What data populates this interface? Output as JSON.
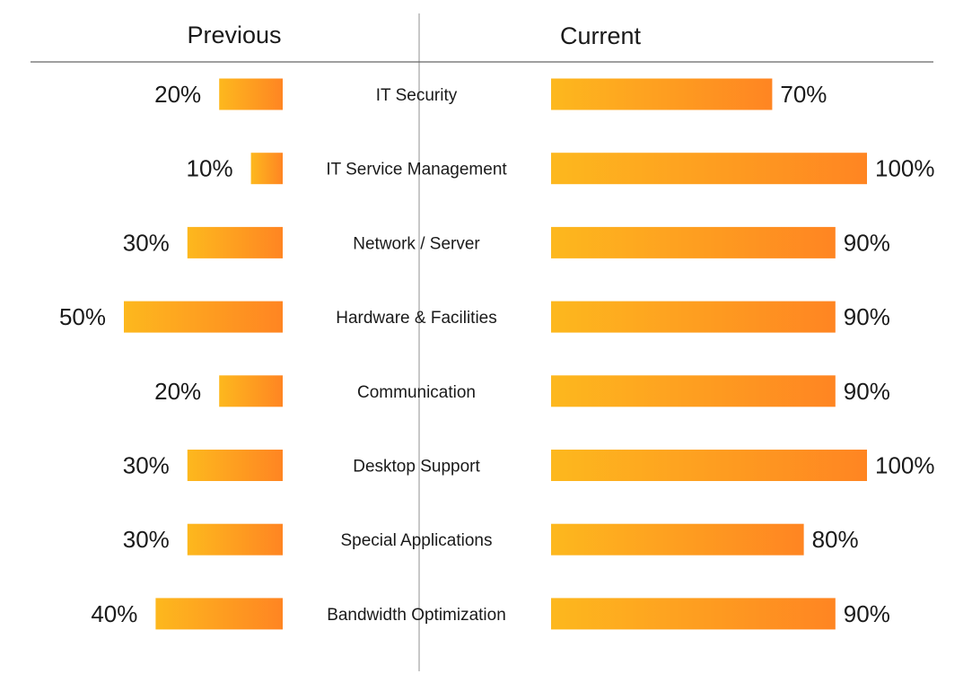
{
  "headers": {
    "previous": "Previous",
    "current": "Current"
  },
  "colors": {
    "bar_start": "#FDB81E",
    "bar_end": "#FF8522",
    "divider": "#c8c8c8",
    "rule": "#666666",
    "text": "#1a1a1a"
  },
  "chart_data": {
    "type": "bar",
    "orientation": "horizontal",
    "layout": "butterfly",
    "categories": [
      "IT Security",
      "IT Service Management",
      "Network / Server",
      "Hardware & Facilities",
      "Communication",
      "Desktop Support",
      "Special Applications",
      "Bandwidth Optimization"
    ],
    "series": [
      {
        "name": "Previous",
        "values": [
          20,
          10,
          30,
          50,
          20,
          30,
          30,
          40
        ],
        "labels": [
          "20%",
          "10%",
          "30%",
          "50%",
          "20%",
          "30%",
          "30%",
          "40%"
        ]
      },
      {
        "name": "Current",
        "values": [
          70,
          100,
          90,
          90,
          90,
          100,
          80,
          90
        ],
        "labels": [
          "70%",
          "100%",
          "90%",
          "90%",
          "90%",
          "100%",
          "80%",
          "90%"
        ]
      }
    ],
    "unit": "%",
    "xlim": [
      0,
      100
    ],
    "grid": false,
    "legend": "none"
  }
}
